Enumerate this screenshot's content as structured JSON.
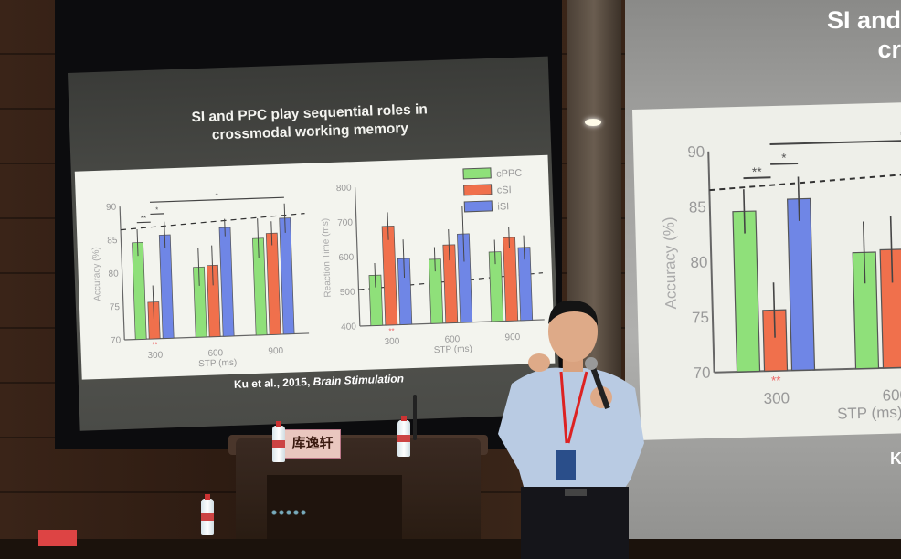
{
  "slide": {
    "title_line1": "SI and PPC play sequential roles in",
    "title_line2": "crossmodal working memory",
    "citation_authors": "Ku et al., 2015, ",
    "citation_journal": "Brain Stimulation"
  },
  "right_screen": {
    "title_line1": "SI and",
    "title_line2": "cr",
    "citation_fragment": "K"
  },
  "nameplate": "库逸轩",
  "colors": {
    "cPPC": "#8fe07a",
    "cSI": "#f0704c",
    "iSI": "#6f86e6"
  },
  "chart_data": [
    {
      "type": "bar",
      "categories": [
        "300",
        "600",
        "900"
      ],
      "xlabel": "STP (ms)",
      "ylabel": "Accuracy (%)",
      "ylim": [
        70,
        90
      ],
      "yticks": [
        70,
        75,
        80,
        85,
        90
      ],
      "series": [
        {
          "name": "cPPC",
          "values": [
            84.5,
            80.5,
            84.5
          ],
          "errors": [
            2,
            2.8,
            3
          ]
        },
        {
          "name": "cSI",
          "values": [
            75.5,
            80.7,
            85.2
          ],
          "errors": [
            2.5,
            3,
            1.8
          ]
        },
        {
          "name": "iSI",
          "values": [
            85.5,
            86.3,
            87.4
          ],
          "errors": [
            2,
            1.3,
            2.2
          ]
        }
      ],
      "significance": [
        "**",
        "*",
        "*"
      ],
      "group_marks": [
        "**",
        "",
        ""
      ],
      "reference_line": "dashed"
    },
    {
      "type": "bar",
      "categories": [
        "300",
        "600",
        "900"
      ],
      "xlabel": "STP (ms)",
      "ylabel": "Reaction Time (ms)",
      "ylim": [
        400,
        800
      ],
      "yticks": [
        400,
        500,
        600,
        700,
        800
      ],
      "series": [
        {
          "name": "cPPC",
          "values": [
            545,
            585,
            600
          ],
          "errors": [
            35,
            35,
            35
          ]
        },
        {
          "name": "cSI",
          "values": [
            685,
            625,
            640
          ],
          "errors": [
            40,
            45,
            30
          ]
        },
        {
          "name": "iSI",
          "values": [
            590,
            655,
            610
          ],
          "errors": [
            55,
            80,
            35
          ]
        }
      ],
      "group_marks": [
        "**",
        "",
        ""
      ],
      "legend": [
        "cPPC",
        "cSI",
        "iSI"
      ],
      "legend_position": "top-right",
      "reference_line": "dashed"
    }
  ]
}
